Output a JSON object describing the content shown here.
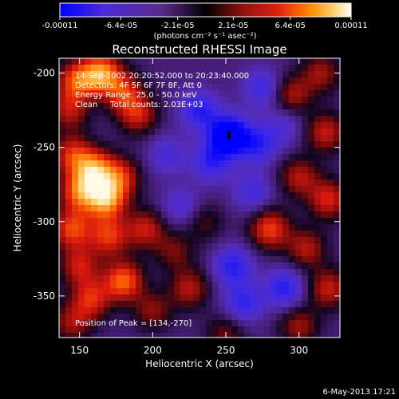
{
  "colorbar": {
    "tick_labels": [
      "-0.00011",
      "-6.4e-05",
      "-2.1e-05",
      "2.1e-05",
      "6.4e-05",
      "0.00011"
    ],
    "min": -0.00011,
    "max": 0.00011,
    "units_label": "(photons cm⁻² s⁻¹ asec⁻²)",
    "colormap": [
      "#0000ff",
      "#4b2bd8",
      "#6a2aa6",
      "#000000",
      "#8a1010",
      "#e02010",
      "#ff8a00",
      "#ffd070",
      "#ffffff"
    ]
  },
  "chart_data": {
    "type": "heatmap",
    "title": "Reconstructed RHESSI Image",
    "xlabel": "Heliocentric X (arcsec)",
    "ylabel": "Heliocentric Y (arcsec)",
    "xlim": [
      136,
      328
    ],
    "ylim": [
      -378,
      -190
    ],
    "xticks": [
      150,
      200,
      250,
      300
    ],
    "yticks": [
      -200,
      -250,
      -300,
      -350
    ],
    "annotations": [
      "14-Sep-2002 20:20:52.000 to 20:23:40.000",
      "Detectors: 4F 5F 6F 7F 8F, Att 0",
      "Energy Range: 25.0 - 50.0 keV",
      "Clean     Total counts: 2.03E+03"
    ],
    "peak_label": "Position of Peak = [134,-270]",
    "blobs": [
      {
        "x": 148,
        "y": -205,
        "v": 0.7
      },
      {
        "x": 165,
        "y": -200,
        "v": 0.9
      },
      {
        "x": 143,
        "y": -225,
        "v": 0.5
      },
      {
        "x": 180,
        "y": -213,
        "v": 0.6
      },
      {
        "x": 190,
        "y": -228,
        "v": 0.55
      },
      {
        "x": 145,
        "y": -255,
        "v": 0.6
      },
      {
        "x": 160,
        "y": -265,
        "v": 0.85
      },
      {
        "x": 150,
        "y": -280,
        "v": 0.75
      },
      {
        "x": 168,
        "y": -285,
        "v": 0.95
      },
      {
        "x": 178,
        "y": -270,
        "v": 0.6
      },
      {
        "x": 145,
        "y": -305,
        "v": 0.7
      },
      {
        "x": 170,
        "y": -310,
        "v": 0.65
      },
      {
        "x": 195,
        "y": -305,
        "v": 0.55
      },
      {
        "x": 150,
        "y": -330,
        "v": 0.55
      },
      {
        "x": 180,
        "y": -340,
        "v": 0.8
      },
      {
        "x": 158,
        "y": -352,
        "v": 0.6
      },
      {
        "x": 145,
        "y": -368,
        "v": 0.45
      },
      {
        "x": 200,
        "y": -360,
        "v": 0.4
      },
      {
        "x": 225,
        "y": -345,
        "v": 0.5
      },
      {
        "x": 215,
        "y": -320,
        "v": 0.35
      },
      {
        "x": 295,
        "y": -215,
        "v": 0.5
      },
      {
        "x": 315,
        "y": -200,
        "v": 0.45
      },
      {
        "x": 318,
        "y": -240,
        "v": 0.55
      },
      {
        "x": 300,
        "y": -270,
        "v": 0.5
      },
      {
        "x": 320,
        "y": -285,
        "v": 0.6
      },
      {
        "x": 280,
        "y": -305,
        "v": 0.7
      },
      {
        "x": 305,
        "y": -318,
        "v": 0.5
      },
      {
        "x": 320,
        "y": -345,
        "v": 0.55
      },
      {
        "x": 300,
        "y": -370,
        "v": 0.45
      },
      {
        "x": 250,
        "y": -375,
        "v": 0.35
      },
      {
        "x": 235,
        "y": -300,
        "v": 0.3
      },
      {
        "x": 252,
        "y": -242,
        "v": -1.0
      },
      {
        "x": 232,
        "y": -225,
        "v": -0.55
      },
      {
        "x": 275,
        "y": -210,
        "v": -0.45
      },
      {
        "x": 240,
        "y": -260,
        "v": -0.5
      },
      {
        "x": 272,
        "y": -248,
        "v": -0.5
      },
      {
        "x": 268,
        "y": -280,
        "v": -0.4
      },
      {
        "x": 255,
        "y": -330,
        "v": -0.55
      },
      {
        "x": 290,
        "y": -345,
        "v": -0.55
      },
      {
        "x": 262,
        "y": -355,
        "v": -0.5
      },
      {
        "x": 210,
        "y": -255,
        "v": -0.35
      },
      {
        "x": 220,
        "y": -290,
        "v": -0.35
      },
      {
        "x": 290,
        "y": -235,
        "v": -0.3
      }
    ],
    "background": -0.25
  },
  "footer": {
    "date_stamp": "6-May-2013 17:21"
  }
}
